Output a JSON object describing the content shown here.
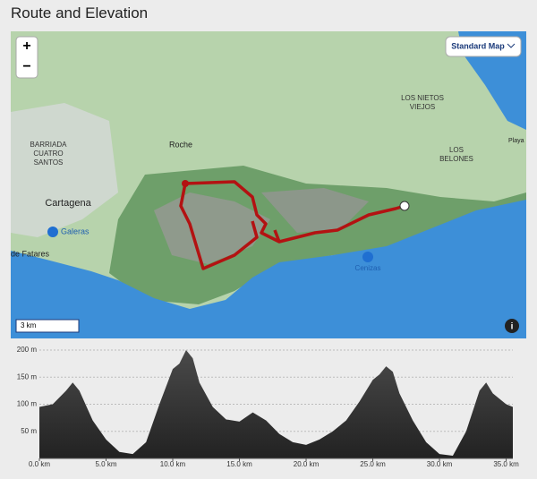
{
  "header": {
    "title": "Route and Elevation"
  },
  "map": {
    "zoom_in": "+",
    "zoom_out": "−",
    "map_style": "Standard Map",
    "scale": "3 km",
    "labels": [
      {
        "lines": [
          "BARRIADA",
          "CUATRO",
          "SANTOS"
        ]
      },
      {
        "lines": [
          "Cartagena"
        ]
      },
      {
        "lines": [
          "Galeras"
        ]
      },
      {
        "lines": [
          "de Fatares"
        ]
      },
      {
        "lines": [
          "Roche"
        ]
      },
      {
        "lines": [
          "LOS NIETOS",
          "VIEJOS"
        ]
      },
      {
        "lines": [
          "LOS",
          "BELONES"
        ]
      },
      {
        "lines": [
          "Playa"
        ]
      },
      {
        "lines": [
          "Cenizas"
        ]
      }
    ]
  },
  "chart_data": {
    "type": "area",
    "color": "#4a4a4a",
    "x": [
      0,
      1,
      2,
      2.5,
      3,
      4,
      5,
      6,
      7,
      8,
      9,
      10,
      10.5,
      11,
      11.5,
      12,
      13,
      14,
      15,
      16,
      17,
      18,
      19,
      20,
      21,
      22,
      23,
      24,
      25,
      25.5,
      26,
      26.5,
      27,
      28,
      29,
      30,
      31,
      32,
      33,
      33.5,
      34,
      35,
      35.5
    ],
    "y": [
      95,
      100,
      125,
      140,
      125,
      70,
      35,
      12,
      8,
      30,
      100,
      165,
      175,
      200,
      185,
      140,
      95,
      72,
      68,
      85,
      70,
      45,
      30,
      25,
      35,
      50,
      70,
      105,
      145,
      155,
      170,
      160,
      120,
      70,
      30,
      8,
      5,
      50,
      125,
      140,
      120,
      100,
      95
    ],
    "xlim": [
      0,
      35.5
    ],
    "ylim": [
      0,
      200
    ],
    "xticks": [
      {
        "value": 0,
        "label": "0.0 km"
      },
      {
        "value": 5,
        "label": "5.0 km"
      },
      {
        "value": 10,
        "label": "10.0 km"
      },
      {
        "value": 15,
        "label": "15.0 km"
      },
      {
        "value": 20,
        "label": "20.0 km"
      },
      {
        "value": 25,
        "label": "25.0 km"
      },
      {
        "value": 30,
        "label": "30.0 km"
      },
      {
        "value": 35,
        "label": "35.0 km"
      }
    ],
    "yticks": [
      {
        "value": 50,
        "label": "50 m"
      },
      {
        "value": 100,
        "label": "100 m"
      },
      {
        "value": 150,
        "label": "150 m"
      },
      {
        "value": 200,
        "label": "200 m"
      }
    ],
    "grid": true
  }
}
